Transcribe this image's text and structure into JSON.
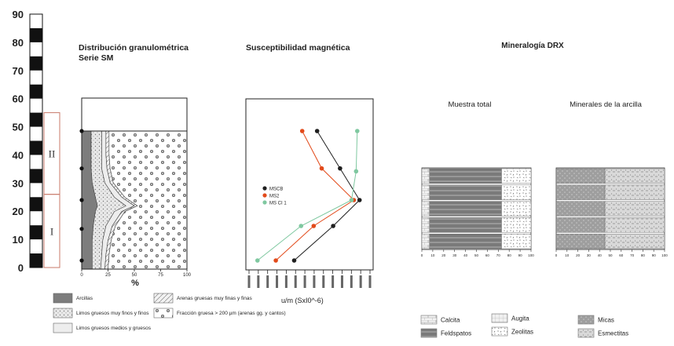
{
  "depth_scale": {
    "ticks": [
      "90",
      "80",
      "70",
      "60",
      "50",
      "40",
      "30",
      "20",
      "10",
      "0"
    ],
    "units": [
      {
        "label": "II",
        "from": 26,
        "to": 55
      },
      {
        "label": "I",
        "from": 0,
        "to": 26
      }
    ]
  },
  "granulometry": {
    "title_line1": "Distribución granulométrica",
    "title_line2": "Serie SM",
    "x_ticks": [
      "0",
      "25",
      "50",
      "75",
      "100"
    ],
    "x_unit": "%",
    "legend": [
      {
        "label": "Arcillas",
        "pattern": "dark"
      },
      {
        "label": "Limos gruesos muy finos y finos",
        "pattern": "stipple"
      },
      {
        "label": "Limos gruesos medios y gruesos",
        "pattern": "light"
      },
      {
        "label": "Arenas gruesas muy finas y finas",
        "pattern": "hatch"
      },
      {
        "label": "Fracción gruesa > 200 µm (arenas gg. y cantos)",
        "pattern": "flower"
      }
    ],
    "sample_depths": [
      3,
      14,
      24,
      35,
      48
    ]
  },
  "susceptibility": {
    "title": "Susceptibilidad magnética",
    "x_unit": "u/m  (SxI0^-6)",
    "tick_count": 14,
    "series": [
      {
        "name": "MSCB",
        "color": "#1f1f1f"
      },
      {
        "name": "MS2",
        "color": "#e24a1a"
      },
      {
        "name": "MS CI 1",
        "color": "#7fc8a0"
      }
    ]
  },
  "drx": {
    "title": "Mineralogía DRX",
    "muestra_total": "Muestra total",
    "arcilla": "Minerales de la arcilla",
    "x_ticks": [
      "0",
      "10",
      "20",
      "30",
      "40",
      "50",
      "60",
      "70",
      "80",
      "90",
      "100"
    ],
    "legend_total": [
      {
        "label": "Calcita",
        "pattern": "brick"
      },
      {
        "label": "Feldspatos",
        "pattern": "dash"
      },
      {
        "label": "Augita",
        "pattern": "grid"
      },
      {
        "label": "Zeolitas",
        "pattern": "dots"
      }
    ],
    "legend_arcilla": [
      {
        "label": "Micas",
        "pattern": "gray"
      },
      {
        "label": "Esmectitas",
        "pattern": "lightgray"
      }
    ]
  },
  "chart_data": [
    {
      "type": "area",
      "title": "Distribución granulométrica Serie SM",
      "xlabel": "%",
      "ylabel": "",
      "xlim": [
        0,
        100
      ],
      "ylim": [
        0,
        55
      ],
      "y": [
        0,
        5,
        10,
        15,
        20,
        22,
        25,
        30,
        35,
        40,
        45,
        48
      ],
      "series": [
        {
          "name": "Arcillas",
          "values": [
            10,
            10,
            10,
            11,
            13,
            15,
            13,
            10,
            9,
            9,
            9,
            9
          ]
        },
        {
          "name": "Limos gruesos muy finos y finos",
          "values": [
            8,
            9,
            10,
            12,
            18,
            27,
            18,
            12,
            10,
            10,
            10,
            10
          ]
        },
        {
          "name": "Limos gruesos medios y gruesos",
          "values": [
            4,
            4,
            5,
            6,
            7,
            8,
            7,
            5,
            5,
            4,
            4,
            4
          ]
        },
        {
          "name": "Arenas gruesas muy finas y finas",
          "values": [
            3,
            3,
            3,
            3,
            3,
            3,
            3,
            3,
            3,
            3,
            3,
            3
          ]
        },
        {
          "name": "Fracción gruesa > 200 µm (arenas gg. y cantos)",
          "values": [
            75,
            74,
            72,
            68,
            59,
            47,
            59,
            70,
            73,
            74,
            74,
            74
          ]
        }
      ]
    },
    {
      "type": "line",
      "title": "Susceptibilidad magnética",
      "xlabel": "u/m (SxI0^-6)",
      "ylabel": "",
      "orientation": "depth on vertical axis",
      "series": [
        {
          "name": "MSCB",
          "points": [
            {
              "x": 0.38,
              "depth": 3
            },
            {
              "x": 0.72,
              "depth": 15
            },
            {
              "x": 0.95,
              "depth": 24
            },
            {
              "x": 0.78,
              "depth": 35
            },
            {
              "x": 0.58,
              "depth": 48
            }
          ]
        },
        {
          "name": "MS2",
          "points": [
            {
              "x": 0.22,
              "depth": 3
            },
            {
              "x": 0.55,
              "depth": 15
            },
            {
              "x": 0.9,
              "depth": 24
            },
            {
              "x": 0.62,
              "depth": 35
            },
            {
              "x": 0.45,
              "depth": 48
            }
          ]
        },
        {
          "name": "MS CI 1",
          "points": [
            {
              "x": 0.06,
              "depth": 3
            },
            {
              "x": 0.44,
              "depth": 15
            },
            {
              "x": 0.88,
              "depth": 24
            },
            {
              "x": 0.92,
              "depth": 34
            },
            {
              "x": 0.93,
              "depth": 48
            }
          ]
        }
      ]
    },
    {
      "type": "bar",
      "title": "Muestra total",
      "orientation": "horizontal stacked",
      "xlim": [
        0,
        100
      ],
      "rows": 5,
      "series": [
        {
          "name": "Calcita",
          "values": [
            7,
            7,
            7,
            7,
            7
          ]
        },
        {
          "name": "Feldspatos",
          "values": [
            66,
            66,
            66,
            66,
            66
          ]
        },
        {
          "name": "Augita",
          "values": [
            0,
            0,
            0,
            0,
            0
          ]
        },
        {
          "name": "Zeolitas",
          "values": [
            27,
            27,
            27,
            27,
            27
          ]
        }
      ]
    },
    {
      "type": "bar",
      "title": "Minerales de la arcilla",
      "orientation": "horizontal stacked",
      "xlim": [
        0,
        100
      ],
      "rows": 5,
      "series": [
        {
          "name": "Micas",
          "values": [
            45,
            45,
            45,
            45,
            45
          ]
        },
        {
          "name": "Esmectitas",
          "values": [
            55,
            55,
            55,
            55,
            55
          ]
        }
      ]
    }
  ]
}
